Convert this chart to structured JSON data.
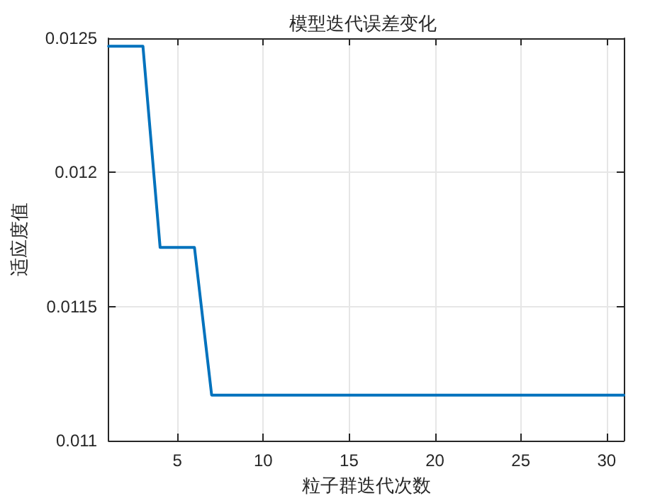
{
  "chart_data": {
    "type": "line",
    "title": "模型迭代误差变化",
    "xlabel": "粒子群迭代次数",
    "ylabel": "适应度值",
    "x": [
      1,
      2,
      3,
      4,
      5,
      6,
      7,
      8,
      9,
      10,
      11,
      12,
      13,
      14,
      15,
      16,
      17,
      18,
      19,
      20,
      21,
      22,
      23,
      24,
      25,
      26,
      27,
      28,
      29,
      30,
      31
    ],
    "series": [
      {
        "color": "#0072bd",
        "values": [
          0.01247,
          0.01247,
          0.01247,
          0.01172,
          0.01172,
          0.01172,
          0.01117,
          0.01117,
          0.01117,
          0.01117,
          0.01117,
          0.01117,
          0.01117,
          0.01117,
          0.01117,
          0.01117,
          0.01117,
          0.01117,
          0.01117,
          0.01117,
          0.01117,
          0.01117,
          0.01117,
          0.01117,
          0.01117,
          0.01117,
          0.01117,
          0.01117,
          0.01117,
          0.01117,
          0.01117
        ]
      }
    ],
    "xlim": [
      1,
      31
    ],
    "xticks": [
      5,
      10,
      15,
      20,
      25,
      30
    ],
    "ylim": [
      0.011,
      0.0125
    ],
    "yticks": [
      0.011,
      0.0115,
      0.012,
      0.0125
    ],
    "grid": true,
    "marker": "none",
    "line_style": "solid"
  }
}
